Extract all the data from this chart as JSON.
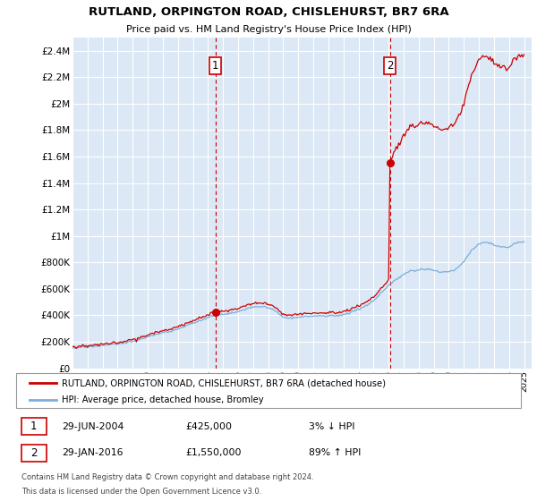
{
  "title": "RUTLAND, ORPINGTON ROAD, CHISLEHURST, BR7 6RA",
  "subtitle": "Price paid vs. HM Land Registry's House Price Index (HPI)",
  "legend_line1": "RUTLAND, ORPINGTON ROAD, CHISLEHURST, BR7 6RA (detached house)",
  "legend_line2": "HPI: Average price, detached house, Bromley",
  "annotation1_label": "1",
  "annotation1_date": "29-JUN-2004",
  "annotation1_price": "£425,000",
  "annotation1_hpi": "3% ↓ HPI",
  "annotation2_label": "2",
  "annotation2_date": "29-JAN-2016",
  "annotation2_price": "£1,550,000",
  "annotation2_hpi": "89% ↑ HPI",
  "footnote1": "Contains HM Land Registry data © Crown copyright and database right 2024.",
  "footnote2": "This data is licensed under the Open Government Licence v3.0.",
  "ylim": [
    0,
    2500000
  ],
  "yticks": [
    0,
    200000,
    400000,
    600000,
    800000,
    1000000,
    1200000,
    1400000,
    1600000,
    1800000,
    2000000,
    2200000,
    2400000
  ],
  "ytick_labels": [
    "£0",
    "£200K",
    "£400K",
    "£600K",
    "£800K",
    "£1M",
    "£1.2M",
    "£1.4M",
    "£1.6M",
    "£1.8M",
    "£2M",
    "£2.2M",
    "£2.4M"
  ],
  "sale1_x": 2004.5,
  "sale1_y": 425000,
  "sale2_x": 2016.083,
  "sale2_y": 1550000,
  "line_color_red": "#cc0000",
  "line_color_blue": "#7aaedc",
  "background_color": "#ffffff",
  "plot_bg_color": "#dce8f5",
  "grid_color": "#ffffff",
  "xlim_left": 1995.0,
  "xlim_right": 2025.5
}
